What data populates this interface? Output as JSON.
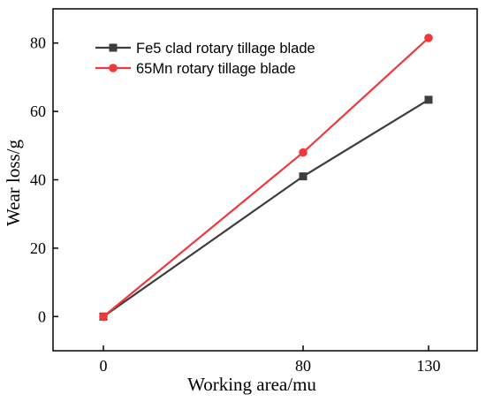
{
  "chart_data": {
    "type": "line",
    "x": [
      0,
      80,
      130
    ],
    "xlabel": "Working area/mu",
    "ylabel": "Wear loss/g",
    "ylim": [
      -10,
      90
    ],
    "yticks": [
      0,
      20,
      40,
      60,
      80
    ],
    "xtick_labels": [
      "0",
      "80",
      "130"
    ],
    "grid": false,
    "legend_position": "top-left",
    "series": [
      {
        "name": "Fe5 clad rotary tillage blade",
        "values": [
          0,
          41,
          63.4
        ],
        "color": "#3d3d3d",
        "marker": "square"
      },
      {
        "name": "65Mn rotary tillage blade",
        "values": [
          0,
          48,
          81.5
        ],
        "color": "#f0383a",
        "marker": "circle"
      }
    ]
  }
}
